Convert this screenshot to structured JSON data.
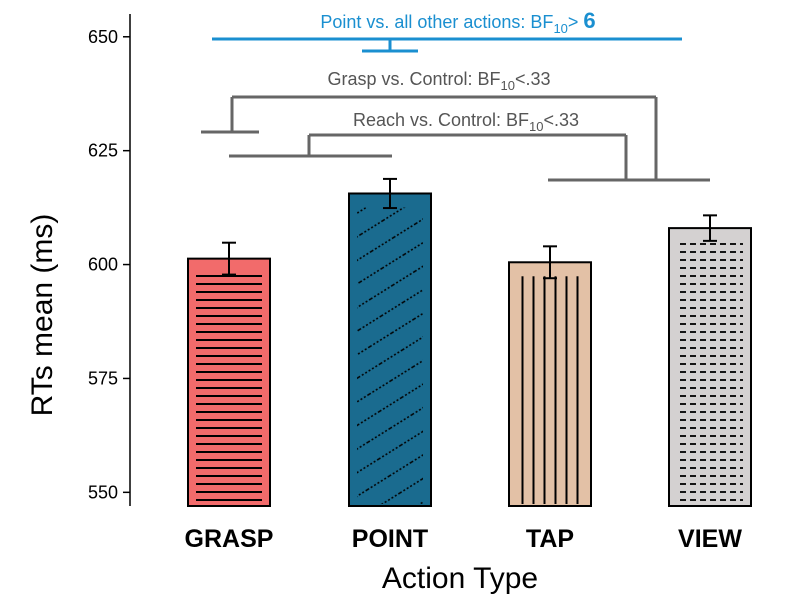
{
  "chart_data": {
    "type": "bar",
    "xlabel": "Action Type",
    "ylabel": "RTs mean (ms)",
    "ylim": [
      547,
      655
    ],
    "yticks": [
      550,
      575,
      600,
      625,
      650
    ],
    "grid": false,
    "categories": [
      "GRASP",
      "POINT",
      "TAP",
      "VIEW"
    ],
    "values": [
      601.3,
      615.6,
      600.5,
      608.0
    ],
    "errors": [
      3.5,
      3.2,
      3.5,
      2.8
    ],
    "colors": [
      "#f26b6b",
      "#1a6b8f",
      "#e3c1a6",
      "#d4d1d1"
    ],
    "hatches": [
      "horizontal",
      "diagonal",
      "vertical",
      "dashed"
    ],
    "annotations": {
      "point_vs_all": {
        "text": "Point vs. all other actions: BF",
        "sub": "10",
        "op": "> ",
        "value": "6",
        "color": "#1a8fd0"
      },
      "grasp_vs_control": {
        "text": "Grasp vs. Control: BF",
        "sub": "10",
        "tail": "<.33",
        "color": "#666666"
      },
      "reach_vs_control": {
        "text": "Reach vs. Control: BF",
        "sub": "10",
        "tail": "<.33",
        "color": "#666666"
      }
    }
  }
}
